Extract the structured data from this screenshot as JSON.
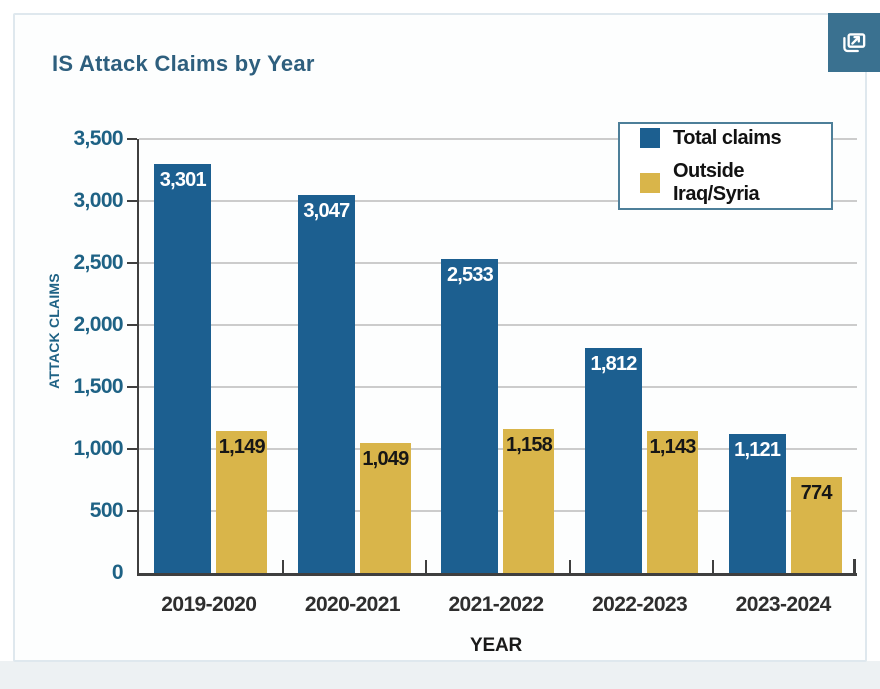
{
  "header": {
    "title": "IS Attack Claims by Year"
  },
  "toolbar": {
    "expand_icon": "open-in-new-window-icon"
  },
  "colors": {
    "total_claims_bar": "#1c5f90",
    "outside_bar": "#d9b54a",
    "title_text": "#2e5f7e",
    "axis_text": "#1e6285",
    "category_text": "#2e2e2e",
    "gridline": "#cccccc",
    "axis_line": "#3f3f3f",
    "card_border": "#dfe8ee",
    "legend_border": "#4d7f99",
    "expand_button_bg": "#3a7190",
    "page_band": "#edf1f3"
  },
  "chart_data": {
    "type": "bar",
    "title": "IS Attack Claims by Year",
    "categories": [
      "2019-2020",
      "2020-2021",
      "2021-2022",
      "2022-2023",
      "2023-2024"
    ],
    "series": [
      {
        "name": "Total claims",
        "color": "#1c5f90",
        "label_color": "#ffffff",
        "values": [
          3301,
          3047,
          2533,
          1812,
          1121
        ]
      },
      {
        "name": "Outside Iraq/Syria",
        "color": "#d9b54a",
        "label_color": "#161616",
        "values": [
          1149,
          1049,
          1158,
          1143,
          774
        ]
      }
    ],
    "xlabel": "YEAR",
    "ylabel": "ATTACK CLAIMS",
    "ylim": [
      0,
      3500
    ],
    "ytick_step": 500,
    "ytick_labels": [
      "0",
      "500",
      "1,000",
      "1,500",
      "2,000",
      "2,500",
      "3,000",
      "3,500"
    ],
    "grid": "horizontal",
    "legend_position": "top-right",
    "value_label_position": "inside-top"
  }
}
